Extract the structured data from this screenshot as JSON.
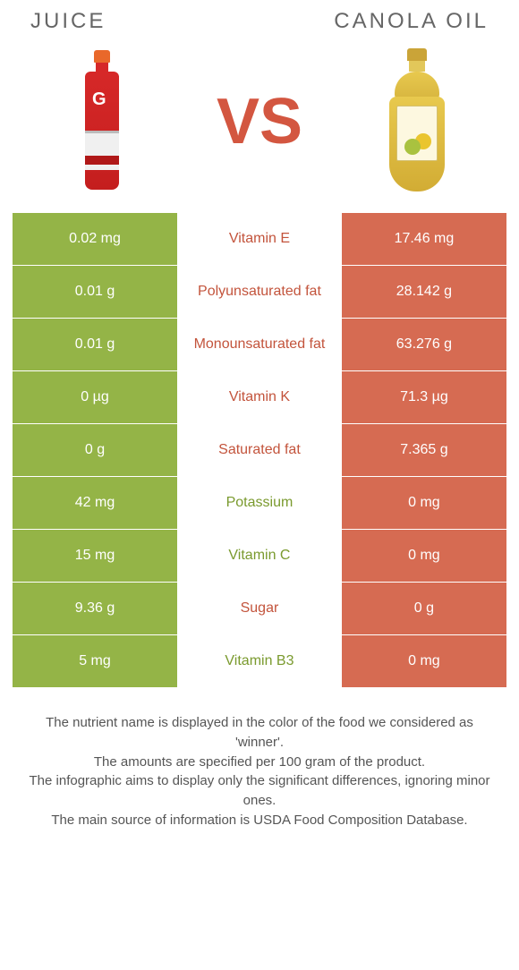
{
  "header": {
    "left": "JUICE",
    "right": "CANOLA OIL",
    "vs": "VS"
  },
  "colors": {
    "left_bg": "#94b447",
    "right_bg": "#d66b52",
    "left_winner_text": "#7a9a2e",
    "right_winner_text": "#c3543c",
    "vs_text": "#d35640",
    "cell_text_on_color": "#ffffff",
    "background": "#ffffff"
  },
  "rows": [
    {
      "left": "0.02 mg",
      "label": "Vitamin E",
      "right": "17.46 mg",
      "winner": "right"
    },
    {
      "left": "0.01 g",
      "label": "Polyunsaturated fat",
      "right": "28.142 g",
      "winner": "right"
    },
    {
      "left": "0.01 g",
      "label": "Monounsaturated fat",
      "right": "63.276 g",
      "winner": "right"
    },
    {
      "left": "0 µg",
      "label": "Vitamin K",
      "right": "71.3 µg",
      "winner": "right"
    },
    {
      "left": "0 g",
      "label": "Saturated fat",
      "right": "7.365 g",
      "winner": "right"
    },
    {
      "left": "42 mg",
      "label": "Potassium",
      "right": "0 mg",
      "winner": "left"
    },
    {
      "left": "15 mg",
      "label": "Vitamin C",
      "right": "0 mg",
      "winner": "left"
    },
    {
      "left": "9.36 g",
      "label": "Sugar",
      "right": "0 g",
      "winner": "right"
    },
    {
      "left": "5 mg",
      "label": "Vitamin B3",
      "right": "0 mg",
      "winner": "left"
    }
  ],
  "footer": {
    "l1": "The nutrient name is displayed in the color of the food we considered as 'winner'.",
    "l2": "The amounts are specified per 100 gram of the product.",
    "l3": "The infographic aims to display only the significant differences, ignoring minor ones.",
    "l4": "The main source of information is USDA Food Composition Database."
  }
}
